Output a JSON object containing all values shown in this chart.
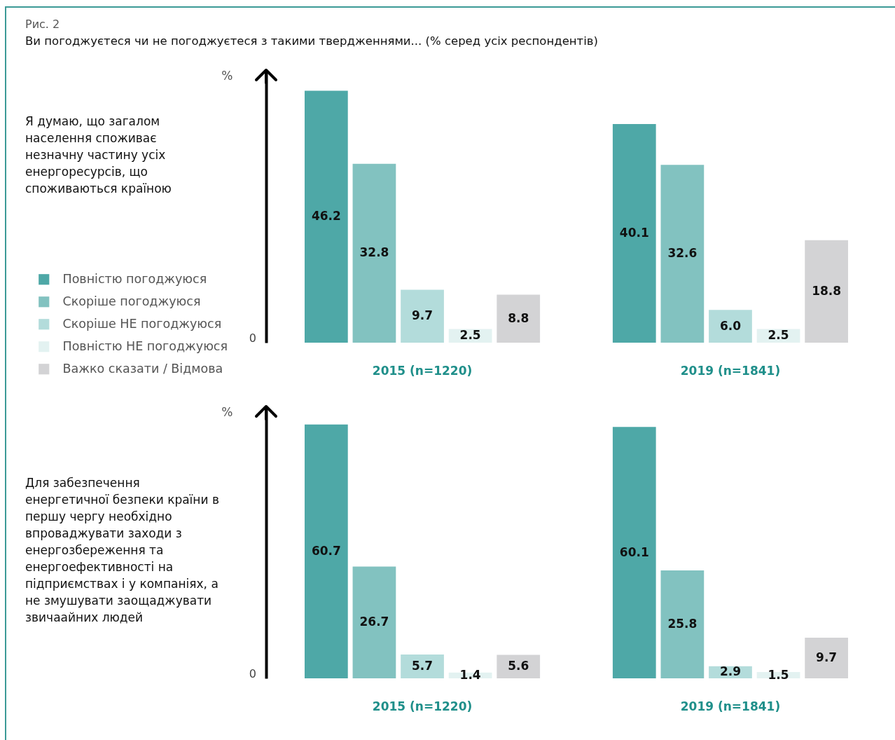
{
  "chart_data": [
    {
      "type": "bar",
      "annotations": [
        "Рис. 2",
        "Я думаю, що загалом населення споживає незначну частину усіх енергоресурсів, що споживаються країною",
        "0"
      ],
      "title": "Ви погоджуєтеся чи не погоджуєтеся з такими твердженнями... (% серед усіх респондентів)",
      "ylabel": "%",
      "categories": [
        "2015 (n=1220)",
        "2019 (n=1841)"
      ],
      "legend": "left",
      "series": [
        {
          "name": "Повністю погоджуюся",
          "color": "#4ea8a7",
          "values": [
            46.2,
            40.1
          ],
          "value_labels": [
            "46.2",
            "40.1"
          ]
        },
        {
          "name": "Скоріше погоджуюся",
          "color": "#82c2c0",
          "values": [
            32.8,
            32.6
          ],
          "value_labels": [
            "32.8",
            "32.6"
          ]
        },
        {
          "name": "Скоріше НЕ погоджуюся",
          "color": "#b3dcdb",
          "values": [
            9.7,
            6.0
          ],
          "value_labels": [
            "9.7",
            "6.0"
          ]
        },
        {
          "name": "Повністю НЕ погоджуюся",
          "color": "#e3f2f1",
          "values": [
            2.5,
            2.5
          ],
          "value_labels": [
            "2.5",
            "2.5"
          ]
        },
        {
          "name": "Важко сказати / Відмова",
          "color": "#d3d3d5",
          "values": [
            8.8,
            18.8
          ],
          "value_labels": [
            "8.8",
            "18.8"
          ]
        }
      ]
    },
    {
      "type": "bar",
      "ylabel": "%",
      "categories": [
        "2015 (n=1220)",
        "2019 (n=1841)"
      ],
      "annotations": [
        "Для забезпечення енергетичної безпеки країни в першу чергу необхідно впроваджувати заходи з енергозбереження та енергоефективності на підприємствах і у компаніях, а не змушувати заощаджувати звичаайних людей",
        "0"
      ],
      "series": [
        {
          "color": "#4ea8a7",
          "values": [
            60.7,
            60.1
          ],
          "value_labels": [
            "60.7",
            "60.1"
          ]
        },
        {
          "color": "#82c2c0",
          "values": [
            26.7,
            25.8
          ],
          "value_labels": [
            "26.7",
            "25.8"
          ]
        },
        {
          "color": "#b3dcdb",
          "values": [
            5.7,
            2.9
          ],
          "value_labels": [
            "5.7",
            "2.9"
          ]
        },
        {
          "color": "#e3f2f1",
          "values": [
            1.4,
            1.5
          ],
          "value_labels": [
            "1.4",
            "1.5"
          ]
        },
        {
          "color": "#d3d3d5",
          "values": [
            5.6,
            9.7
          ],
          "value_labels": [
            "5.6",
            "9.7"
          ]
        }
      ]
    }
  ]
}
